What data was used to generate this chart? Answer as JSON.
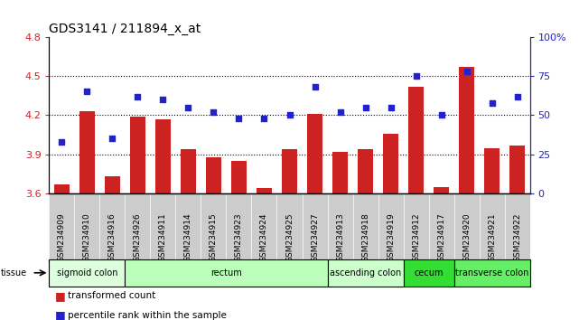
{
  "title": "GDS3141 / 211894_x_at",
  "samples": [
    "GSM234909",
    "GSM234910",
    "GSM234916",
    "GSM234926",
    "GSM234911",
    "GSM234914",
    "GSM234915",
    "GSM234923",
    "GSM234924",
    "GSM234925",
    "GSM234927",
    "GSM234913",
    "GSM234918",
    "GSM234919",
    "GSM234912",
    "GSM234917",
    "GSM234920",
    "GSM234921",
    "GSM234922"
  ],
  "bar_values": [
    3.67,
    4.23,
    3.73,
    4.19,
    4.17,
    3.94,
    3.88,
    3.85,
    3.64,
    3.94,
    4.21,
    3.92,
    3.94,
    4.06,
    4.42,
    3.65,
    4.57,
    3.95,
    3.97
  ],
  "dot_values": [
    33,
    65,
    35,
    62,
    60,
    55,
    52,
    48,
    48,
    50,
    68,
    52,
    55,
    55,
    75,
    50,
    78,
    58,
    62
  ],
  "ylim_left": [
    3.6,
    4.8
  ],
  "ylim_right": [
    0,
    100
  ],
  "yticks_left": [
    3.6,
    3.9,
    4.2,
    4.5,
    4.8
  ],
  "yticks_right": [
    0,
    25,
    50,
    75,
    100
  ],
  "ytick_labels_left": [
    "3.6",
    "3.9",
    "4.2",
    "4.5",
    "4.8"
  ],
  "ytick_labels_right": [
    "0",
    "25",
    "50",
    "75",
    "100%"
  ],
  "hlines": [
    3.9,
    4.2,
    4.5
  ],
  "bar_color": "#cc2222",
  "dot_color": "#2222cc",
  "tissue_groups": [
    {
      "label": "sigmoid colon",
      "start": 0,
      "end": 3,
      "color": "#ddffdd"
    },
    {
      "label": "rectum",
      "start": 3,
      "end": 11,
      "color": "#bbffbb"
    },
    {
      "label": "ascending colon",
      "start": 11,
      "end": 14,
      "color": "#ccffcc"
    },
    {
      "label": "cecum",
      "start": 14,
      "end": 16,
      "color": "#33dd33"
    },
    {
      "label": "transverse colon",
      "start": 16,
      "end": 19,
      "color": "#66ee66"
    }
  ],
  "tissue_label": "tissue",
  "legend_bar_label": "transformed count",
  "legend_dot_label": "percentile rank within the sample",
  "bar_color_legend": "#cc2222",
  "dot_color_legend": "#2222cc",
  "xtick_bg_color": "#cccccc",
  "plot_bg": "#ffffff",
  "spine_color": "#000000"
}
